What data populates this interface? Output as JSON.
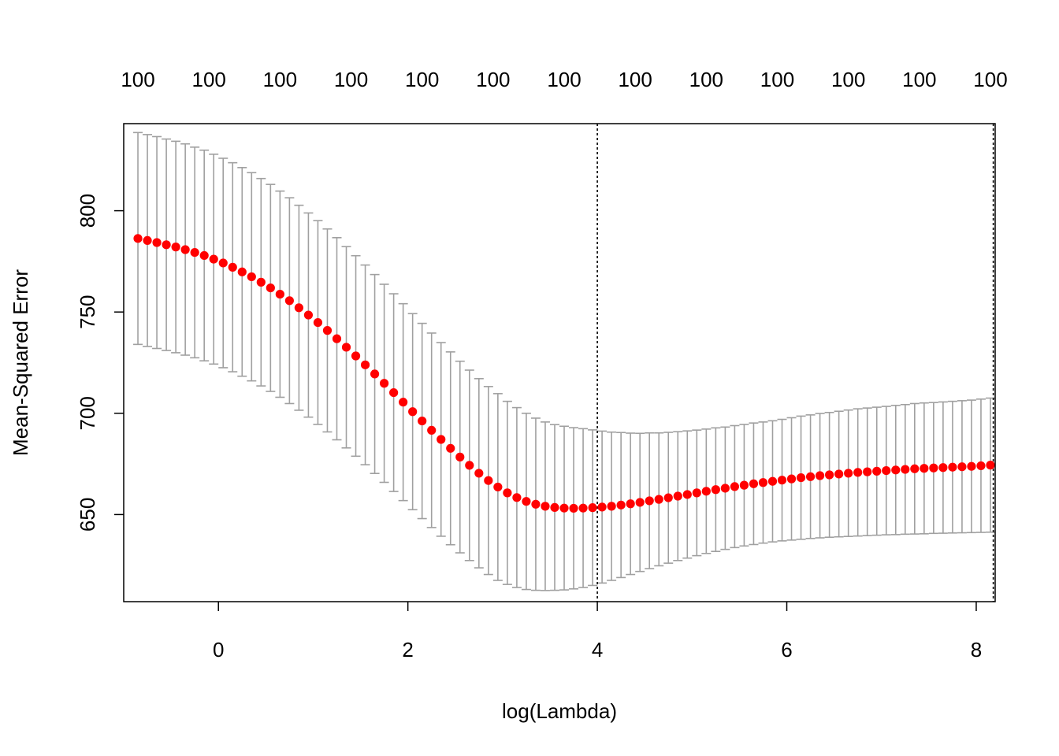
{
  "chart_data": {
    "type": "scatter",
    "title": "",
    "xlabel": "log(Lambda)",
    "ylabel": "Mean-Squared Error",
    "xlim": [
      -1.0,
      8.2
    ],
    "ylim": [
      607,
      843
    ],
    "x_ticks": [
      0,
      2,
      4,
      6,
      8
    ],
    "x_tick_labels": [
      "0",
      "2",
      "4",
      "6",
      "8"
    ],
    "y_ticks": [
      650,
      700,
      750,
      800
    ],
    "y_tick_labels": [
      "650",
      "700",
      "750",
      "800"
    ],
    "top_axis_labels": [
      "100",
      "100",
      "100",
      "100",
      "100",
      "100",
      "100",
      "100",
      "100",
      "100",
      "100",
      "100",
      "100"
    ],
    "reference_lines": [
      {
        "x": 4.0,
        "style": "dotted"
      },
      {
        "x": 8.18,
        "style": "dotted"
      }
    ],
    "grid": false,
    "legend": "none",
    "colors": {
      "point": "#ff0000",
      "errorbar": "#a0a0a0",
      "refline": "#000000",
      "frame": "#000000"
    },
    "series": [
      {
        "x": [
          -0.85,
          -0.75,
          -0.65,
          -0.55,
          -0.45,
          -0.35,
          -0.25,
          -0.15,
          -0.05,
          0.05,
          0.15,
          0.25,
          0.35,
          0.45,
          0.55,
          0.65,
          0.75,
          0.85,
          0.95,
          1.05,
          1.15,
          1.25,
          1.35,
          1.45,
          1.55,
          1.65,
          1.75,
          1.85,
          1.95,
          2.05,
          2.15,
          2.25,
          2.35,
          2.45,
          2.55,
          2.65,
          2.75,
          2.85,
          2.95,
          3.05,
          3.15,
          3.25,
          3.35,
          3.45,
          3.55,
          3.65,
          3.75,
          3.85,
          3.95,
          4.05,
          4.15,
          4.25,
          4.35,
          4.45,
          4.55,
          4.65,
          4.75,
          4.85,
          4.95,
          5.05,
          5.15,
          5.25,
          5.35,
          5.45,
          5.55,
          5.65,
          5.75,
          5.85,
          5.95,
          6.05,
          6.15,
          6.25,
          6.35,
          6.45,
          6.55,
          6.65,
          6.75,
          6.85,
          6.95,
          7.05,
          7.15,
          7.25,
          7.35,
          7.45,
          7.55,
          7.65,
          7.75,
          7.85,
          7.95,
          8.05,
          8.15
        ],
        "y": [
          786.3,
          785.3,
          784.3,
          783.2,
          782.1,
          780.8,
          779.4,
          777.9,
          776.1,
          774.2,
          772.1,
          769.8,
          767.4,
          764.7,
          761.9,
          758.8,
          755.6,
          752.1,
          748.5,
          744.8,
          740.9,
          736.8,
          732.6,
          728.3,
          723.9,
          719.4,
          714.8,
          710.2,
          705.5,
          700.8,
          696.2,
          691.6,
          687.1,
          682.7,
          678.4,
          674.3,
          670.4,
          666.8,
          663.6,
          660.7,
          658.4,
          656.5,
          655.1,
          654.1,
          653.5,
          653.2,
          653.1,
          653.2,
          653.4,
          653.7,
          654.1,
          654.7,
          655.3,
          656.0,
          656.8,
          657.5,
          658.3,
          659.1,
          659.9,
          660.7,
          661.5,
          662.3,
          663.0,
          663.8,
          664.5,
          665.2,
          665.8,
          666.4,
          667.0,
          667.6,
          668.2,
          668.7,
          669.2,
          669.6,
          670.0,
          670.4,
          670.8,
          671.1,
          671.4,
          671.7,
          672.0,
          672.3,
          672.6,
          672.8,
          673.0,
          673.2,
          673.4,
          673.6,
          673.8,
          674.1,
          674.4
        ],
        "lower": [
          734.0,
          733.0,
          732.0,
          731.0,
          729.9,
          728.7,
          727.4,
          725.9,
          724.3,
          722.5,
          720.5,
          718.3,
          716.0,
          713.5,
          710.8,
          707.9,
          704.8,
          701.5,
          698.1,
          694.5,
          690.8,
          686.9,
          682.9,
          678.8,
          674.6,
          670.3,
          665.9,
          661.4,
          656.9,
          652.4,
          648.0,
          643.6,
          639.3,
          635.1,
          631.1,
          627.3,
          623.7,
          620.4,
          617.5,
          615.5,
          614.0,
          613.0,
          612.6,
          612.5,
          612.6,
          612.8,
          613.3,
          614.0,
          615.0,
          616.2,
          617.5,
          618.9,
          620.4,
          621.9,
          623.3,
          624.7,
          626.0,
          627.3,
          628.5,
          629.7,
          630.8,
          631.8,
          632.8,
          633.7,
          634.5,
          635.2,
          635.9,
          636.5,
          637.0,
          637.4,
          637.8,
          638.2,
          638.5,
          638.8,
          639.0,
          639.2,
          639.4,
          639.6,
          639.8,
          640.0,
          640.1,
          640.3,
          640.4,
          640.5,
          640.7,
          640.8,
          640.9,
          641.0,
          641.1,
          641.2,
          641.3
        ],
        "upper": [
          838.6,
          837.6,
          836.6,
          835.4,
          834.3,
          833.0,
          831.4,
          829.9,
          827.9,
          825.9,
          823.7,
          821.3,
          818.8,
          815.9,
          813.0,
          809.7,
          806.4,
          802.7,
          798.9,
          795.1,
          791.0,
          786.7,
          782.3,
          777.8,
          773.2,
          768.5,
          763.7,
          759.0,
          754.1,
          749.2,
          744.4,
          739.6,
          734.9,
          730.3,
          725.7,
          721.3,
          717.1,
          713.2,
          709.7,
          705.9,
          702.8,
          700.0,
          697.6,
          695.7,
          694.4,
          693.6,
          692.9,
          692.4,
          691.8,
          691.2,
          690.7,
          690.5,
          690.2,
          690.1,
          690.3,
          690.3,
          690.6,
          690.9,
          691.3,
          691.7,
          692.2,
          692.8,
          693.2,
          693.9,
          694.5,
          695.2,
          695.7,
          696.3,
          697.0,
          697.8,
          698.6,
          699.2,
          699.9,
          700.4,
          701.0,
          701.6,
          702.2,
          702.6,
          703.0,
          703.4,
          703.9,
          704.3,
          704.8,
          705.1,
          705.3,
          705.6,
          705.9,
          706.2,
          706.5,
          707.0,
          707.5
        ]
      }
    ]
  }
}
